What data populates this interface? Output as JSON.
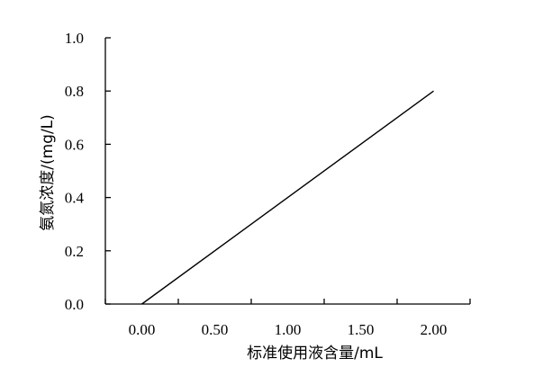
{
  "chart_data": {
    "type": "line",
    "title": "",
    "xlabel": "标准使用液含量/mL",
    "ylabel": "氨氮浓度/(mg/L)",
    "x_ticks": [
      "0.00",
      "0.50",
      "1.00",
      "1.50",
      "2.00"
    ],
    "y_ticks": [
      "0.0",
      "0.2",
      "0.4",
      "0.6",
      "0.8",
      "1.0"
    ],
    "xlim": [
      -0.25,
      2.25
    ],
    "ylim": [
      0,
      1.0
    ],
    "grid": false,
    "legend": "none",
    "series": [
      {
        "x": [
          0.0,
          2.0
        ],
        "y": [
          0.0,
          0.8
        ]
      }
    ]
  }
}
